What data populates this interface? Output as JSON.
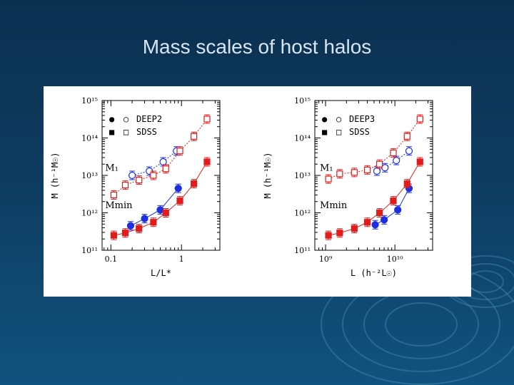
{
  "slide": {
    "title": "Mass scales of host halos"
  },
  "colors": {
    "background_top": "#0b2f4f",
    "background_bottom": "#10537e",
    "title": "#d8e4ef",
    "deep2": "#1d2fe0",
    "sdss": "#e01c1c"
  },
  "chart_data": [
    {
      "type": "scatter",
      "xlabel": "L/L*",
      "ylabel": "M (h⁻¹M☉)",
      "xscale": "log",
      "yscale": "log",
      "xlim": [
        0.075,
        3.5
      ],
      "ylim": [
        100000000000.0,
        1000000000000000.0
      ],
      "x_ticks": [
        {
          "v": 0.1,
          "label": "0.1"
        },
        {
          "v": 1,
          "label": "1"
        }
      ],
      "y_ticks": [
        {
          "v": 100000000000.0,
          "label": "10¹¹"
        },
        {
          "v": 1000000000000.0,
          "label": "10¹²"
        },
        {
          "v": 10000000000000.0,
          "label": "10¹³"
        },
        {
          "v": 100000000000000.0,
          "label": "10¹⁴"
        },
        {
          "v": 1000000000000000.0,
          "label": "10¹⁵"
        }
      ],
      "legend": {
        "position": "top-left",
        "entries": [
          {
            "filled": "●",
            "open": "○",
            "label": "DEEP2",
            "color": "#1d2fe0"
          },
          {
            "filled": "■",
            "open": "□",
            "label": "SDSS",
            "color": "#e01c1c"
          }
        ]
      },
      "annotations": [
        {
          "text": "M₁",
          "x": 0.1,
          "y": 16000000000000.0
        },
        {
          "text": "Mmin",
          "x": 0.1,
          "y": 1600000000000.0
        }
      ],
      "series": [
        {
          "name": "DEEP2",
          "marker": "circle",
          "filled": true,
          "color": "#1d2fe0",
          "x": [
            0.19,
            0.3,
            0.5,
            0.9
          ],
          "y": [
            450000000000.0,
            700000000000.0,
            1200000000000.0,
            4500000000000.0
          ]
        },
        {
          "name": "DEEP2",
          "marker": "circle",
          "filled": false,
          "color": "#1d2fe0",
          "x": [
            0.2,
            0.35,
            0.55,
            0.85
          ],
          "y": [
            10000000000000.0,
            13000000000000.0,
            23000000000000.0,
            45000000000000.0
          ]
        },
        {
          "name": "SDSS",
          "marker": "square",
          "filled": true,
          "color": "#e01c1c",
          "x": [
            0.11,
            0.16,
            0.25,
            0.4,
            0.6,
            0.95,
            1.5,
            2.3
          ],
          "y": [
            250000000000.0,
            290000000000.0,
            380000000000.0,
            560000000000.0,
            1000000000000.0,
            2100000000000.0,
            6000000000000.0,
            23000000000000.0
          ]
        },
        {
          "name": "SDSS",
          "marker": "square",
          "filled": false,
          "color": "#e01c1c",
          "x": [
            0.11,
            0.16,
            0.25,
            0.4,
            0.6,
            0.95,
            1.5,
            2.3
          ],
          "y": [
            3000000000000.0,
            5500000000000.0,
            7500000000000.0,
            10000000000000.0,
            15000000000000.0,
            45000000000000.0,
            110000000000000.0,
            320000000000000.0
          ]
        }
      ]
    },
    {
      "type": "scatter",
      "xlabel": "L (h⁻²L☉)",
      "ylabel": "M (h⁻¹M☉)",
      "xscale": "log",
      "yscale": "log",
      "xlim": [
        700000000.0,
        35000000000.0
      ],
      "ylim": [
        100000000000.0,
        1000000000000000.0
      ],
      "x_ticks": [
        {
          "v": 1000000000.0,
          "label": "10⁹"
        },
        {
          "v": 10000000000.0,
          "label": "10¹⁰"
        }
      ],
      "y_ticks": [
        {
          "v": 100000000000.0,
          "label": "10¹¹"
        },
        {
          "v": 1000000000000.0,
          "label": "10¹²"
        },
        {
          "v": 10000000000000.0,
          "label": "10¹³"
        },
        {
          "v": 100000000000000.0,
          "label": "10¹⁴"
        },
        {
          "v": 1000000000000000.0,
          "label": "10¹⁵"
        }
      ],
      "legend": {
        "position": "top-left",
        "entries": [
          {
            "filled": "●",
            "open": "○",
            "label": "DEEP3",
            "color": "#1d2fe0"
          },
          {
            "filled": "■",
            "open": "□",
            "label": "SDSS",
            "color": "#e01c1c"
          }
        ]
      },
      "annotations": [
        {
          "text": "M₁",
          "x": 1000000000.0,
          "y": 16000000000000.0
        },
        {
          "text": "Mmin",
          "x": 1000000000.0,
          "y": 1600000000000.0
        }
      ],
      "series": [
        {
          "name": "DEEP3",
          "marker": "circle",
          "filled": true,
          "color": "#1d2fe0",
          "x": [
            5200000000.0,
            7000000000.0,
            11000000000.0,
            16000000000.0
          ],
          "y": [
            480000000000.0,
            650000000000.0,
            1200000000000.0,
            4500000000000.0
          ]
        },
        {
          "name": "DEEP3",
          "marker": "circle",
          "filled": false,
          "color": "#1d2fe0",
          "x": [
            5500000000.0,
            7200000000.0,
            10500000000.0,
            16000000000.0
          ],
          "y": [
            13000000000000.0,
            16000000000000.0,
            25000000000000.0,
            45000000000000.0
          ]
        },
        {
          "name": "SDSS",
          "marker": "square",
          "filled": true,
          "color": "#e01c1c",
          "x": [
            1100000000.0,
            1600000000.0,
            2600000000.0,
            4000000000.0,
            6000000000.0,
            9500000000.0,
            15000000000.0,
            23000000000.0
          ],
          "y": [
            250000000000.0,
            290000000000.0,
            380000000000.0,
            560000000000.0,
            1000000000000.0,
            2100000000000.0,
            6000000000000.0,
            23000000000000.0
          ]
        },
        {
          "name": "SDSS",
          "marker": "square",
          "filled": false,
          "color": "#e01c1c",
          "x": [
            1100000000.0,
            1600000000.0,
            2600000000.0,
            4000000000.0,
            6000000000.0,
            9500000000.0,
            15000000000.0,
            23000000000.0
          ],
          "y": [
            8000000000000.0,
            11000000000000.0,
            12000000000000.0,
            14000000000000.0,
            20000000000000.0,
            40000000000000.0,
            110000000000000.0,
            320000000000000.0
          ]
        }
      ]
    }
  ]
}
